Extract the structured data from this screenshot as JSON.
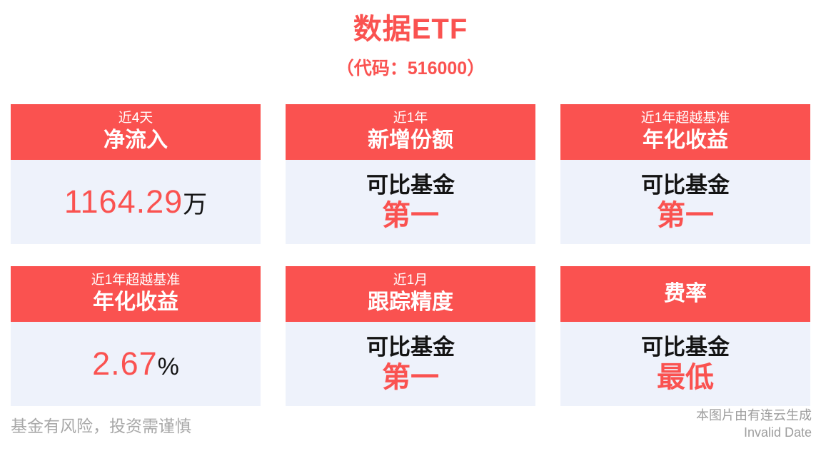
{
  "title": "数据ETF",
  "subtitle": "（代码：516000）",
  "colors": {
    "accent_red": "#fa5250",
    "card_body_bg": "#eef2fb",
    "text_dark": "#141414",
    "footer_gray": "#a8a8a8"
  },
  "cards": [
    {
      "period": "近4天",
      "metric": "净流入",
      "value": "1164.29",
      "unit": "万"
    },
    {
      "period": "近1年",
      "metric": "新增份额",
      "label": "可比基金",
      "highlight": "第一"
    },
    {
      "period": "近1年超越基准",
      "metric": "年化收益",
      "label": "可比基金",
      "highlight": "第一"
    },
    {
      "period": "近1年超越基准",
      "metric": "年化收益",
      "value": "2.67",
      "unit": "%"
    },
    {
      "period": "近1月",
      "metric": "跟踪精度",
      "label": "可比基金",
      "highlight": "第一"
    },
    {
      "period": "",
      "metric": "费率",
      "label": "可比基金",
      "highlight": "最低"
    }
  ],
  "footer": {
    "disclaimer": "基金有风险，投资需谨慎",
    "source": "本图片由有连云生成",
    "date": "Invalid Date"
  }
}
